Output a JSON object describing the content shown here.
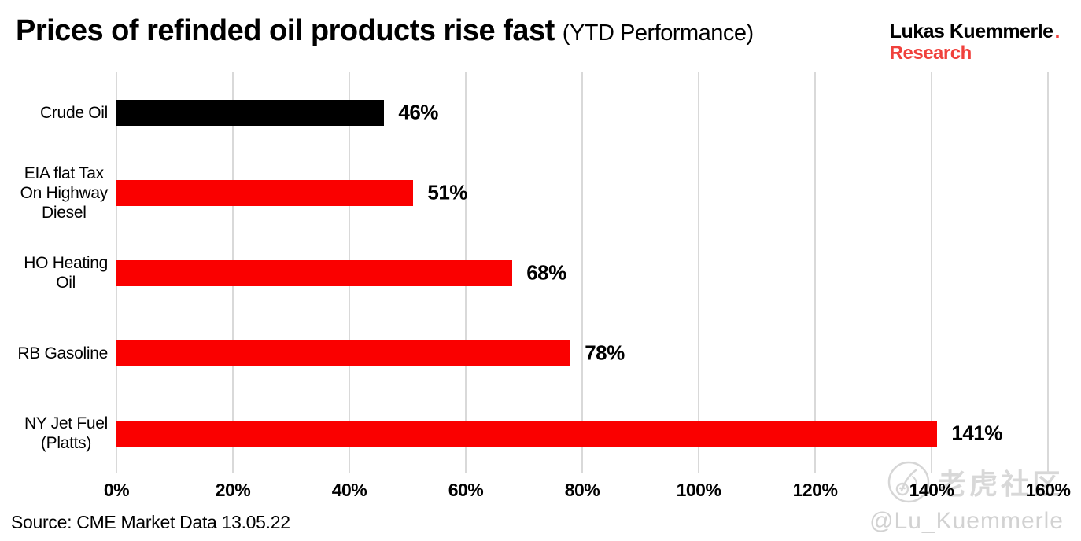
{
  "title": {
    "main": "Prices of refinded oil products rise fast",
    "sub": "(YTD Performance)"
  },
  "logo": {
    "line1": "Lukas Kuemmerle",
    "dot": ".",
    "line2": "Research"
  },
  "source": "Source: CME Market Data 13.05.22",
  "watermark": {
    "community": "老虎社区",
    "handle": "@Lu_Kuemmerle",
    "icon": "tiger-circle-sketch"
  },
  "colors": {
    "bar_red": "#fa0000",
    "bar_black": "#000000",
    "logo_red": "#f0413c",
    "gridline": "#d9d9d9",
    "watermark_gray": "#d2d2d2"
  },
  "chart_data": {
    "type": "bar",
    "orientation": "horizontal",
    "title": "Prices of refinded oil products rise fast (YTD Performance)",
    "categories": [
      "Crude Oil",
      "EIA flat Tax\nOn Highway\nDiesel",
      "HO Heating\nOil",
      "RB Gasoline",
      "NY Jet Fuel\n(Platts)"
    ],
    "values": [
      46,
      51,
      68,
      78,
      141
    ],
    "value_labels": [
      "46%",
      "51%",
      "68%",
      "78%",
      "141%"
    ],
    "bar_colors": [
      "#000000",
      "#fa0000",
      "#fa0000",
      "#fa0000",
      "#fa0000"
    ],
    "xlabel": "",
    "ylabel": "",
    "xlim": [
      0,
      160
    ],
    "x_tick_values": [
      0,
      20,
      40,
      60,
      80,
      100,
      120,
      140,
      160
    ],
    "x_ticks": [
      "0%",
      "20%",
      "40%",
      "60%",
      "80%",
      "100%",
      "120%",
      "140%",
      "160%"
    ],
    "grid": "vertical",
    "legend": "none"
  }
}
